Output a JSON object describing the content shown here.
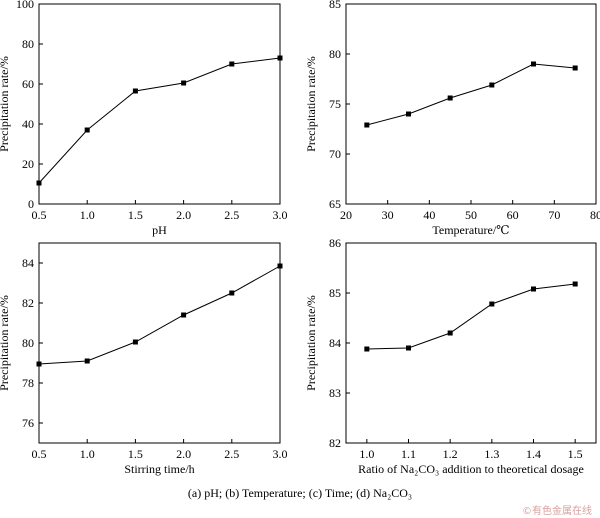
{
  "chart_data": [
    {
      "type": "line",
      "x": [
        0.5,
        1.0,
        1.5,
        2.0,
        2.5,
        3.0
      ],
      "values": [
        10.5,
        37,
        56.5,
        60.5,
        70,
        73
      ],
      "xlabel": "pH",
      "ylabel": "Precipitation rate/%",
      "xlim": [
        0.5,
        3.0
      ],
      "ylim": [
        0,
        100
      ],
      "xticks": [
        "0.5",
        "1.0",
        "1.5",
        "2.0",
        "2.5",
        "3.0"
      ],
      "yticks": [
        "0",
        "20",
        "40",
        "60",
        "80",
        "100"
      ],
      "grid": false
    },
    {
      "type": "line",
      "x": [
        25,
        35,
        45,
        55,
        65,
        75
      ],
      "values": [
        72.9,
        74.0,
        75.6,
        76.9,
        79.0,
        78.6
      ],
      "xlabel": "Temperature/℃",
      "ylabel": "Precipitation rate/%",
      "xlim": [
        20,
        80
      ],
      "ylim": [
        65,
        85
      ],
      "xticks": [
        "20",
        "30",
        "40",
        "50",
        "60",
        "70",
        "80"
      ],
      "yticks": [
        "65",
        "70",
        "75",
        "80",
        "85"
      ],
      "grid": false
    },
    {
      "type": "line",
      "x": [
        0.5,
        1.0,
        1.5,
        2.0,
        2.5,
        3.0
      ],
      "values": [
        78.95,
        79.1,
        80.05,
        81.4,
        82.5,
        83.85
      ],
      "xlabel": "Stirring time/h",
      "ylabel": "Precipitation rate/%",
      "xlim": [
        0.5,
        3.0
      ],
      "ylim": [
        75,
        85
      ],
      "xticks": [
        "0.5",
        "1.0",
        "1.5",
        "2.0",
        "2.5",
        "3.0"
      ],
      "yticks": [
        "76",
        "78",
        "80",
        "82",
        "84"
      ],
      "grid": false
    },
    {
      "type": "line",
      "x": [
        1.0,
        1.1,
        1.2,
        1.3,
        1.4,
        1.5
      ],
      "values": [
        83.88,
        83.9,
        84.2,
        84.78,
        85.08,
        85.18
      ],
      "xlabel": "Ratio of Na₂CO₃ addition to theoretical dosage",
      "ylabel": "Precipitation rate/%",
      "xlim": [
        0.95,
        1.55
      ],
      "ylim": [
        82,
        86
      ],
      "xticks": [
        "1.0",
        "1.1",
        "1.2",
        "1.3",
        "1.4",
        "1.5"
      ],
      "yticks": [
        "82",
        "83",
        "84",
        "85",
        "86"
      ],
      "grid": false
    }
  ],
  "caption": "(a) pH; (b) Temperature; (c) Time; (d) Na₂CO₃",
  "watermark": "©有色金属在线"
}
